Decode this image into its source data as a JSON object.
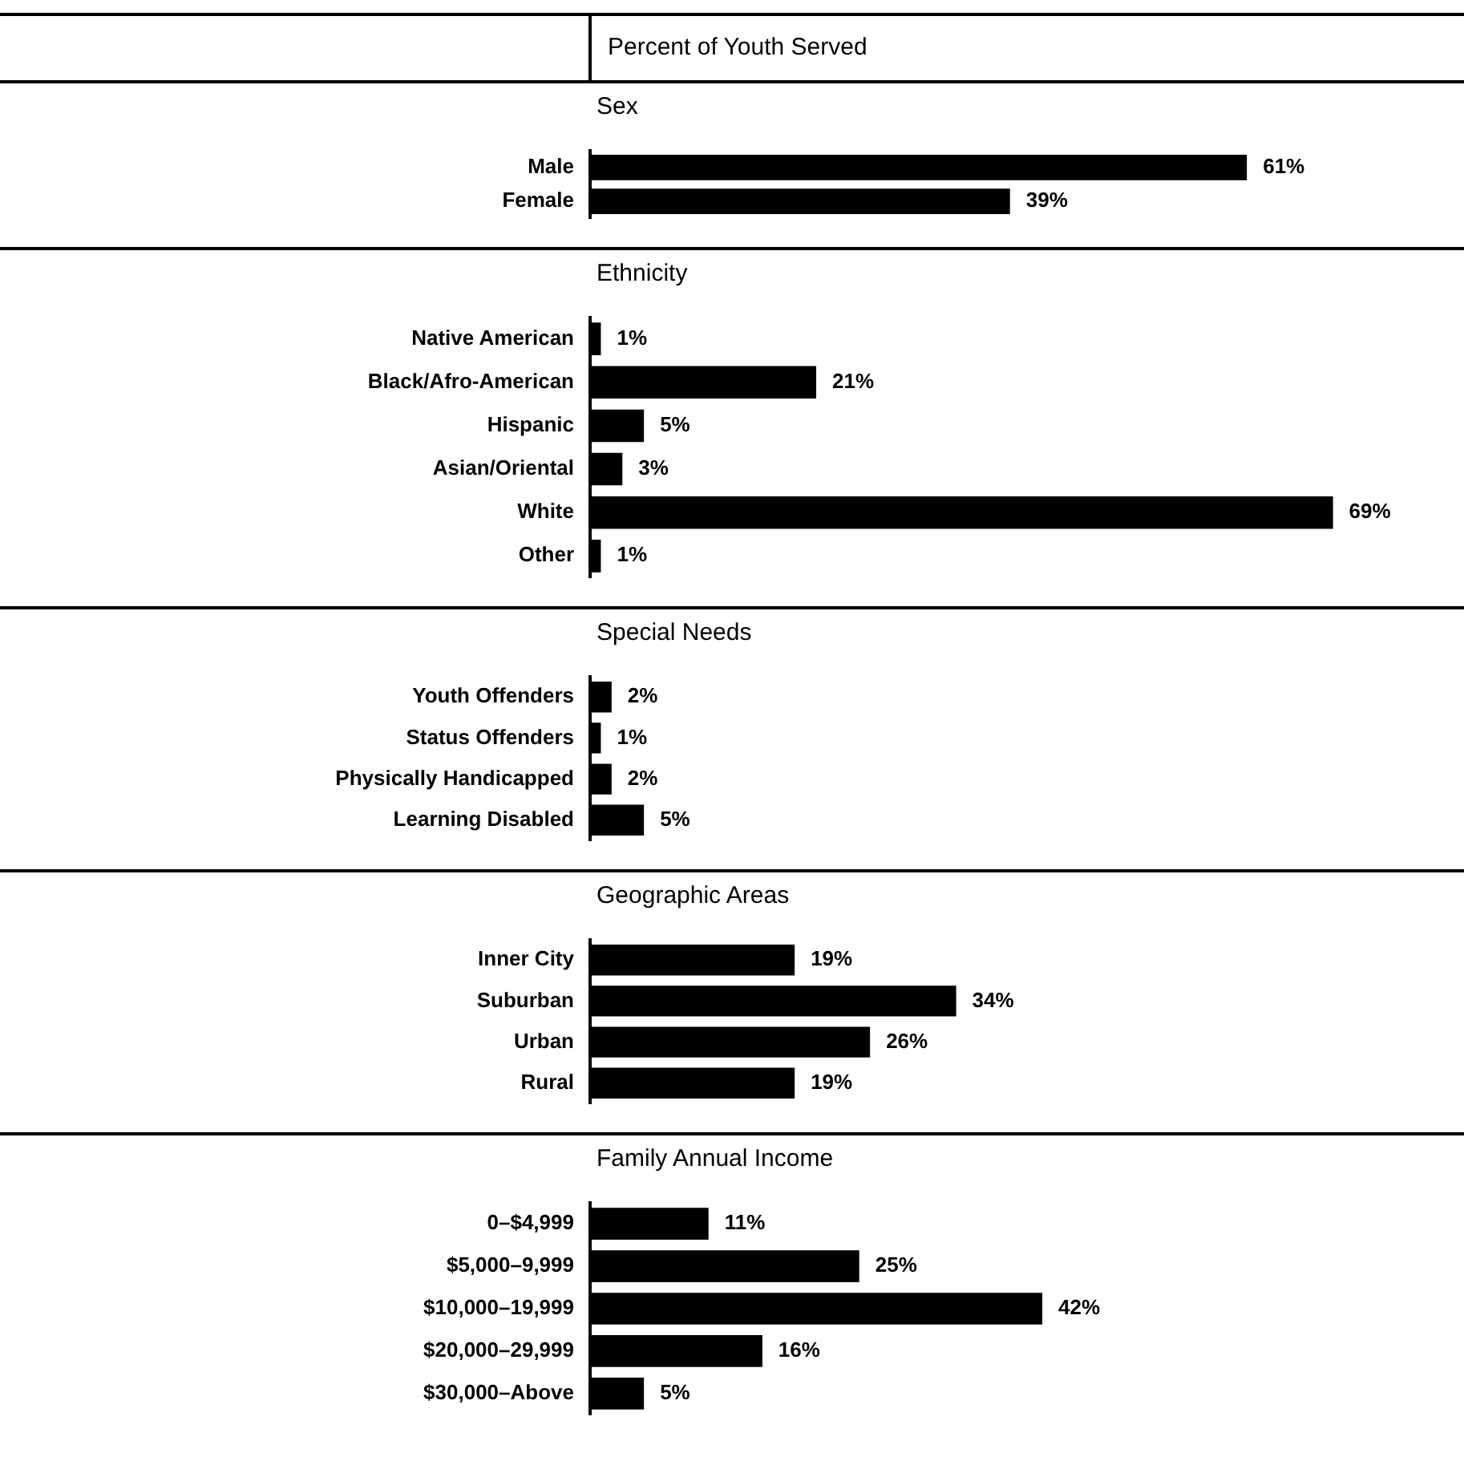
{
  "chart_data": [
    {
      "type": "bar",
      "orientation": "horizontal",
      "title": "Sex",
      "annotations": [
        "Percent of Youth Served"
      ],
      "categories": [
        "Male",
        "Female"
      ],
      "values": [
        61,
        39
      ],
      "value_labels": [
        "61%",
        "39%"
      ],
      "color": "#000000",
      "tick_labels": "y"
    },
    {
      "type": "bar",
      "orientation": "horizontal",
      "title": "Ethnicity",
      "categories": [
        "Native American",
        "Black/Afro-American",
        "Hispanic",
        "Asian/Oriental",
        "White",
        "Other"
      ],
      "values": [
        1,
        21,
        5,
        3,
        69,
        1
      ],
      "value_labels": [
        "1%",
        "21%",
        "5%",
        "3%",
        "69%",
        "1%"
      ],
      "color": "#000000",
      "tick_labels": "y"
    },
    {
      "type": "bar",
      "orientation": "horizontal",
      "title": "Special Needs",
      "categories": [
        "Youth Offenders",
        "Status Offenders",
        "Physically Handicapped",
        "Learning Disabled"
      ],
      "values": [
        2,
        1,
        2,
        5
      ],
      "value_labels": [
        "2%",
        "1%",
        "2%",
        "5%"
      ],
      "color": "#000000",
      "tick_labels": "y"
    },
    {
      "type": "bar",
      "orientation": "horizontal",
      "title": "Geographic Areas",
      "categories": [
        "Inner City",
        "Suburban",
        "Urban",
        "Rural"
      ],
      "values": [
        19,
        34,
        26,
        19
      ],
      "value_labels": [
        "19%",
        "34%",
        "26%",
        "19%"
      ],
      "color": "#000000",
      "tick_labels": "y"
    },
    {
      "type": "bar",
      "orientation": "horizontal",
      "title": "Family Annual Income",
      "categories": [
        "0–$4,999",
        "$5,000–9,999",
        "$10,000–19,999",
        "$20,000–29,999",
        "$30,000–Above"
      ],
      "values": [
        11,
        25,
        42,
        16,
        5
      ],
      "value_labels": [
        "11%",
        "25%",
        "42%",
        "16%",
        "5%"
      ],
      "color": "#000000",
      "tick_labels": "y"
    }
  ]
}
